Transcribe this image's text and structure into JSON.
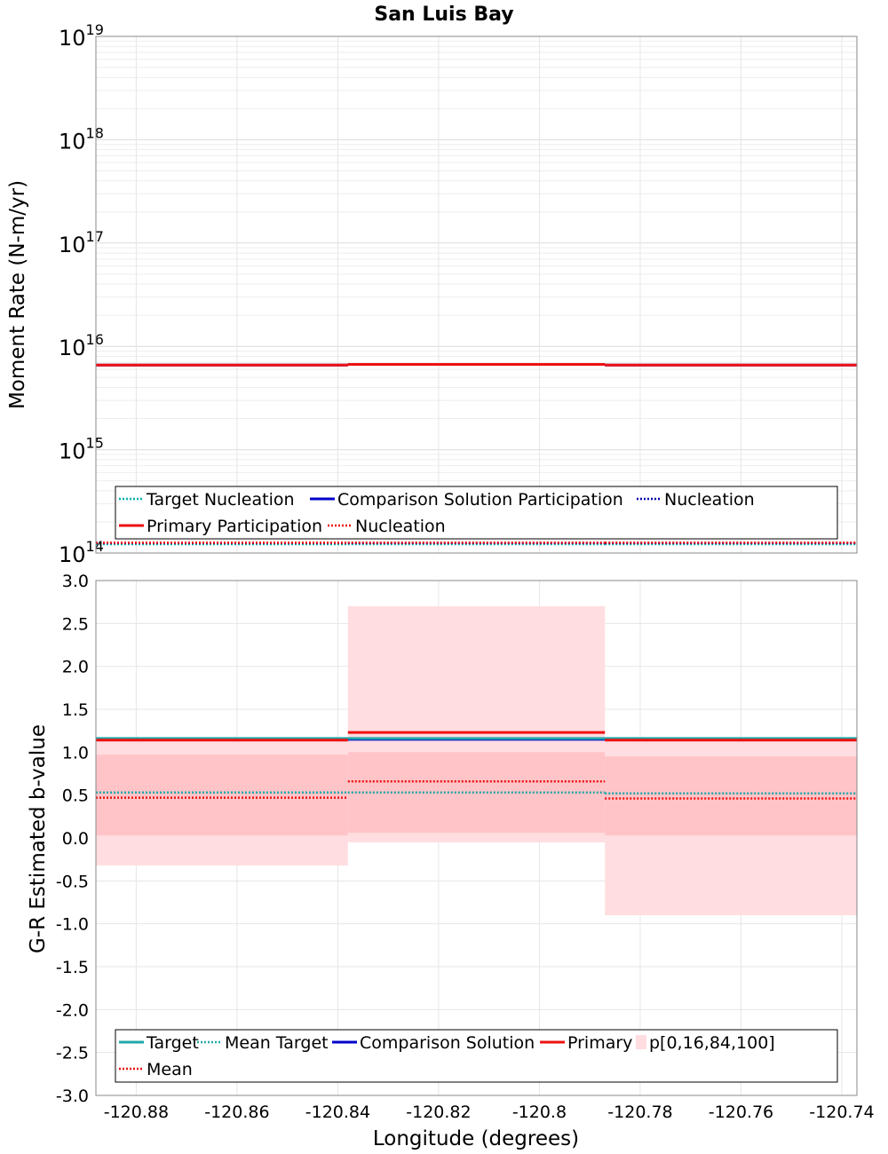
{
  "title": "San Luis Bay",
  "chart_data": [
    {
      "type": "line",
      "name": "moment-rate",
      "ylabel": "Moment Rate (N-m/yr)",
      "yscale": "log",
      "ylim": [
        100000000000000.0,
        1e+19
      ],
      "xlim": [
        -120.888,
        -120.737
      ],
      "grid": true,
      "ytick_exponents": [
        14,
        15,
        16,
        17,
        18,
        19
      ],
      "bin_edges": [
        -120.888,
        -120.838,
        -120.787,
        -120.737
      ],
      "series": [
        {
          "name": "Target Nucleation",
          "color": "#00b0b0",
          "dash": true,
          "values": [
            122000000000000.0,
            122000000000000.0,
            122000000000000.0
          ]
        },
        {
          "name": "Comparison Solution Participation",
          "color": "#0000cc",
          "dash": false,
          "values": [
            6600000000000000.0,
            6700000000000000.0,
            6600000000000000.0
          ]
        },
        {
          "name": "Nucleation",
          "color": "#0000aa",
          "dash": true,
          "values": [
            125000000000000.0,
            125000000000000.0,
            125000000000000.0
          ]
        },
        {
          "name": "Primary Participation",
          "color": "#ee1111",
          "dash": false,
          "values": [
            6600000000000000.0,
            6700000000000000.0,
            6600000000000000.0
          ]
        },
        {
          "name": "Nucleation",
          "color": "#ee1111",
          "dash": true,
          "values": [
            126000000000000.0,
            126000000000000.0,
            126000000000000.0
          ]
        }
      ],
      "legend_placement": "bottom"
    },
    {
      "type": "line",
      "name": "b-value",
      "xlabel": "Longitude (degrees)",
      "ylabel": "G-R Estimated b-value",
      "ylim": [
        -3.0,
        3.0
      ],
      "xlim": [
        -120.888,
        -120.737
      ],
      "grid": true,
      "yticks": [
        "3.0",
        "2.5",
        "2.0",
        "1.5",
        "1.0",
        "0.5",
        "0.0",
        "-0.5",
        "-1.0",
        "-1.5",
        "-2.0",
        "-2.5",
        "-3.0"
      ],
      "xticks": [
        "-120.88",
        "-120.86",
        "-120.84",
        "-120.82",
        "-120.8",
        "-120.78",
        "-120.76",
        "-120.74"
      ],
      "bin_edges": [
        -120.888,
        -120.838,
        -120.787,
        -120.737
      ],
      "series": [
        {
          "name": "Target",
          "color": "#20a8a8",
          "dash": false,
          "values": [
            1.16,
            1.16,
            1.16
          ]
        },
        {
          "name": "Mean Target",
          "color": "#20a8a8",
          "dash": true,
          "values": [
            0.53,
            0.53,
            0.52
          ]
        },
        {
          "name": "Comparison Solution",
          "color": "#0000cc",
          "dash": false,
          "values": [
            1.15,
            1.15,
            1.15
          ]
        },
        {
          "name": "Primary",
          "color": "#ee1111",
          "dash": false,
          "values": [
            1.14,
            1.23,
            1.14
          ]
        },
        {
          "name": "Mean",
          "color": "#ee1111",
          "dash": true,
          "values": [
            0.47,
            0.66,
            0.46
          ]
        }
      ],
      "percentile_band": {
        "name": "p[0,16,84,100]",
        "p0": [
          -0.32,
          -0.05,
          -0.9
        ],
        "p16": [
          0.03,
          0.06,
          0.03
        ],
        "p84": [
          0.97,
          1.0,
          0.95
        ],
        "p100": [
          1.17,
          2.7,
          1.17
        ],
        "outer_color": "#ffdde0",
        "inner_color": "#ffc4c8"
      },
      "legend_placement": "bottom"
    }
  ]
}
